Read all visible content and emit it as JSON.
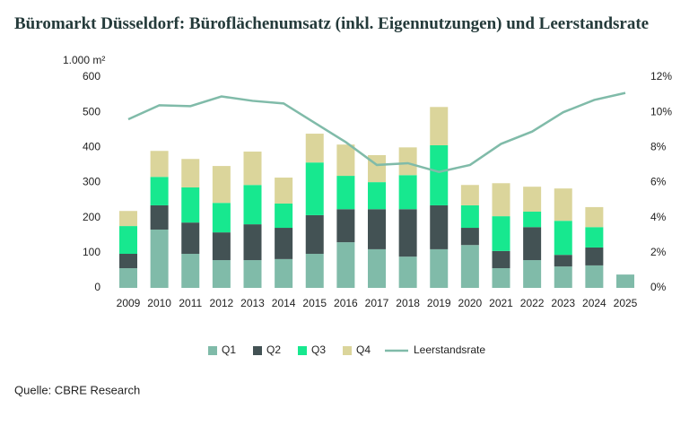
{
  "chart_data": {
    "type": "stacked_bar_line",
    "title": "Büromarkt Düsseldorf: Büroflächenumsatz (inkl. Eigennutzungen) und Leerstandsrate",
    "y_label": "1.000 m²",
    "categories": [
      "2009",
      "2010",
      "2011",
      "2012",
      "2013",
      "2014",
      "2015",
      "2016",
      "2017",
      "2018",
      "2019",
      "2020",
      "2021",
      "2022",
      "2023",
      "2024",
      "2025"
    ],
    "series": [
      {
        "name": "Q1",
        "color": "#80bba9",
        "values": [
          56,
          166,
          97,
          79,
          79,
          82,
          97,
          130,
          110,
          89,
          110,
          122,
          56,
          79,
          61,
          64,
          38
        ]
      },
      {
        "name": "Q2",
        "color": "#435254",
        "values": [
          41,
          69,
          89,
          79,
          102,
          89,
          110,
          94,
          114,
          135,
          125,
          49,
          49,
          94,
          33,
          51,
          null
        ]
      },
      {
        "name": "Q3",
        "color": "#17e88f",
        "values": [
          79,
          81,
          100,
          84,
          112,
          69,
          150,
          95,
          77,
          97,
          171,
          64,
          99,
          44,
          97,
          58,
          null
        ]
      },
      {
        "name": "Q4",
        "color": "#dbd59b",
        "values": [
          43,
          74,
          81,
          105,
          95,
          74,
          82,
          89,
          77,
          79,
          109,
          58,
          94,
          71,
          92,
          57,
          null
        ]
      },
      {
        "name": "Leerstandsrate",
        "color": "#80bba9",
        "axis": "y2",
        "values": [
          9.6,
          10.4,
          10.35,
          10.9,
          10.65,
          10.5,
          9.4,
          8.3,
          7.0,
          7.1,
          6.6,
          7.0,
          8.2,
          8.9,
          10.0,
          10.7,
          11.1
        ]
      }
    ],
    "ylim": [
      0,
      600
    ],
    "yticks": [
      0,
      100,
      200,
      300,
      400,
      500,
      600
    ],
    "y2lim": [
      0,
      12
    ],
    "y2ticks": [
      {
        "value": 0,
        "label": "0%"
      },
      {
        "value": 2,
        "label": "2%"
      },
      {
        "value": 4,
        "label": "4%"
      },
      {
        "value": 6,
        "label": "6%"
      },
      {
        "value": 8,
        "label": "8%"
      },
      {
        "value": 10,
        "label": "10%"
      },
      {
        "value": 12,
        "label": "12%"
      }
    ],
    "grid": false,
    "legend": "bottom"
  },
  "source": "Quelle: CBRE Research"
}
